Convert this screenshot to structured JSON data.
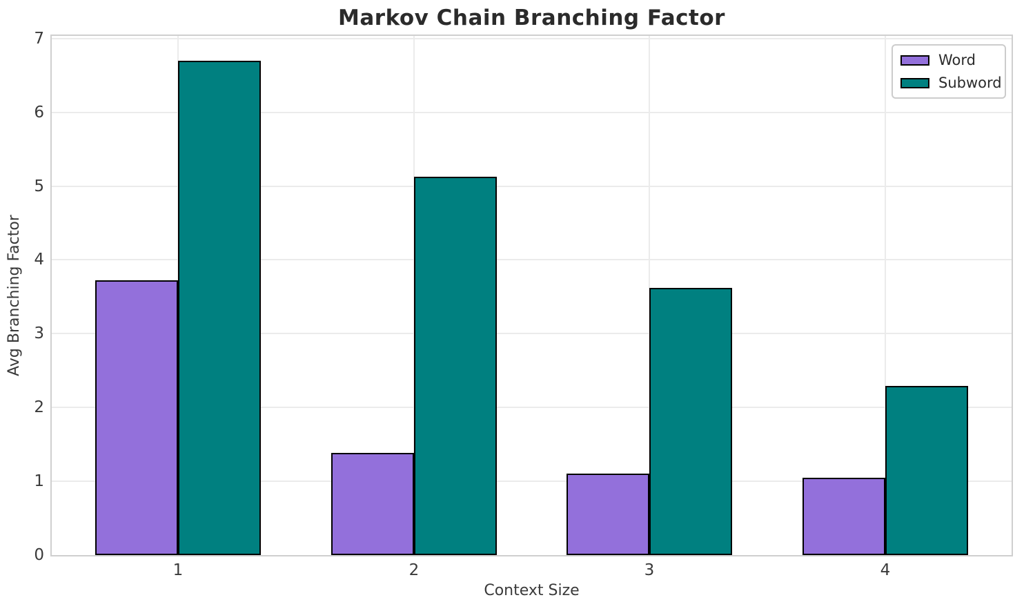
{
  "chart_data": {
    "type": "bar",
    "title": "Markov Chain Branching Factor",
    "xlabel": "Context Size",
    "ylabel": "Avg Branching Factor",
    "categories": [
      "1",
      "2",
      "3",
      "4"
    ],
    "series": [
      {
        "name": "Word",
        "color": "#9370DB",
        "values": [
          3.72,
          1.38,
          1.1,
          1.05
        ]
      },
      {
        "name": "Subword",
        "color": "#008080",
        "values": [
          6.7,
          5.13,
          3.62,
          2.29
        ]
      }
    ],
    "ylim": [
      0,
      7
    ],
    "yticks": [
      0,
      1,
      2,
      3,
      4,
      5,
      6,
      7
    ],
    "xlim": [
      0.465,
      4.535
    ],
    "x_positions": [
      1,
      2,
      3,
      4
    ],
    "y_top": 7.035,
    "bar_width_units": 0.35,
    "grid": true,
    "legend_position": "upper right",
    "bar_edge_color": "#000000",
    "grid_color": "#ebebeb",
    "spine_color": "#cfcfcf",
    "background_color": "#ffffff",
    "text_color": "#3a3a3a",
    "title_color": "#2b2b2b"
  }
}
